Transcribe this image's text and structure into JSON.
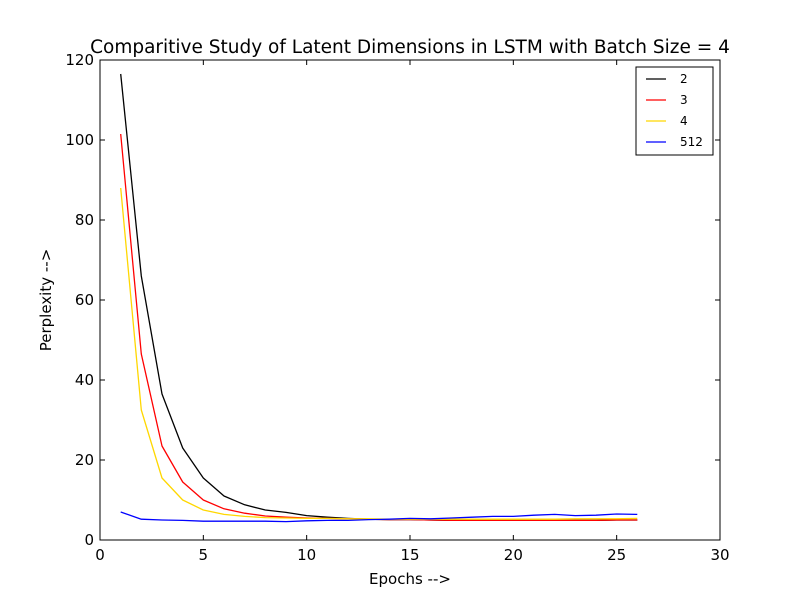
{
  "chart_data": {
    "type": "line",
    "title": "Comparitive Study of Latent Dimensions in LSTM with Batch Size = 4",
    "xlabel": "Epochs -->",
    "ylabel": "Perplexity -->",
    "xlim": [
      0,
      30
    ],
    "ylim": [
      0,
      120
    ],
    "xticks": [
      0,
      5,
      10,
      15,
      20,
      25,
      30
    ],
    "yticks": [
      0,
      20,
      40,
      60,
      80,
      100,
      120
    ],
    "grid": false,
    "legend_position": "top-right",
    "x": [
      1,
      2,
      3,
      4,
      5,
      6,
      7,
      8,
      9,
      10,
      11,
      12,
      13,
      14,
      15,
      16,
      17,
      18,
      19,
      20,
      21,
      22,
      23,
      24,
      25,
      26
    ],
    "series": [
      {
        "name": "2",
        "color": "#000000",
        "values": [
          116.5,
          66.0,
          36.5,
          23.0,
          15.5,
          11.0,
          8.8,
          7.5,
          6.9,
          6.1,
          5.7,
          5.4,
          5.2,
          5.1,
          5.1,
          5.0,
          4.9,
          4.9,
          4.9,
          4.9,
          4.9,
          4.9,
          4.9,
          4.9,
          5.0,
          5.0
        ]
      },
      {
        "name": "3",
        "color": "#ff0000",
        "values": [
          101.5,
          46.5,
          23.5,
          14.5,
          10.0,
          7.8,
          6.7,
          6.0,
          5.7,
          5.5,
          5.4,
          5.3,
          5.2,
          5.1,
          5.1,
          5.0,
          4.9,
          4.9,
          4.9,
          4.9,
          4.9,
          4.9,
          4.9,
          4.9,
          5.0,
          5.0
        ]
      },
      {
        "name": "4",
        "color": "#ffd700",
        "values": [
          88.0,
          32.5,
          15.5,
          10.0,
          7.5,
          6.4,
          5.9,
          5.6,
          5.5,
          5.4,
          5.4,
          5.3,
          5.3,
          5.2,
          5.2,
          5.2,
          5.2,
          5.2,
          5.2,
          5.2,
          5.2,
          5.2,
          5.3,
          5.3,
          5.3,
          5.4
        ]
      },
      {
        "name": "512",
        "color": "#0000ff",
        "values": [
          7.0,
          5.2,
          5.0,
          4.9,
          4.7,
          4.7,
          4.7,
          4.7,
          4.6,
          4.8,
          4.9,
          4.9,
          5.1,
          5.2,
          5.4,
          5.3,
          5.5,
          5.7,
          5.9,
          5.9,
          6.2,
          6.4,
          6.1,
          6.2,
          6.5,
          6.4
        ]
      }
    ]
  }
}
